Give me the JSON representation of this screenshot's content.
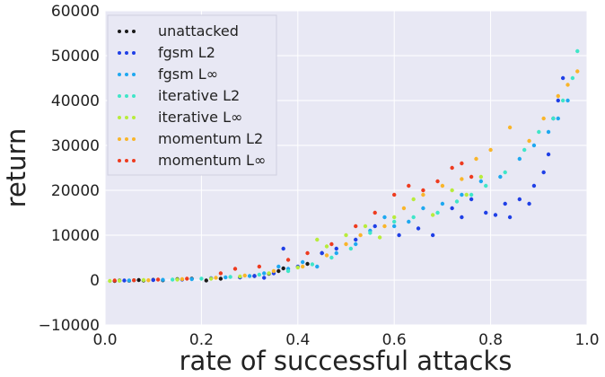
{
  "chart_data": {
    "type": "scatter",
    "title": "",
    "xlabel": "rate of successful attacks",
    "ylabel": "return",
    "xlim": [
      0.0,
      1.0
    ],
    "ylim": [
      -10000,
      60000
    ],
    "xticks": [
      0.0,
      0.2,
      0.4,
      0.6,
      0.8,
      1.0
    ],
    "xtick_labels": [
      "0.0",
      "0.2",
      "0.4",
      "0.6",
      "0.8",
      "1.0"
    ],
    "yticks": [
      -10000,
      0,
      10000,
      20000,
      30000,
      40000,
      50000,
      60000
    ],
    "ytick_labels": [
      "−10000",
      "0",
      "10000",
      "20000",
      "30000",
      "40000",
      "50000",
      "60000"
    ],
    "grid": true,
    "background": "#e8e8f4",
    "legend_position": "top-left",
    "series": [
      {
        "name": "unattacked",
        "color": "#1a1a1a",
        "points": [
          [
            0.02,
            -200
          ],
          [
            0.03,
            -100
          ],
          [
            0.05,
            -150
          ],
          [
            0.07,
            0
          ],
          [
            0.08,
            -100
          ],
          [
            0.1,
            50
          ],
          [
            0.12,
            -50
          ],
          [
            0.15,
            200
          ],
          [
            0.18,
            300
          ],
          [
            0.21,
            -100
          ],
          [
            0.24,
            300
          ],
          [
            0.28,
            600
          ],
          [
            0.31,
            900
          ],
          [
            0.34,
            1400
          ],
          [
            0.36,
            2000
          ],
          [
            0.37,
            2600
          ],
          [
            0.42,
            3600
          ],
          [
            0.45,
            6000
          ]
        ]
      },
      {
        "name": "fgsm L2",
        "color": "#1f3fe6",
        "points": [
          [
            0.04,
            -100
          ],
          [
            0.1,
            0
          ],
          [
            0.16,
            100
          ],
          [
            0.22,
            400
          ],
          [
            0.28,
            600
          ],
          [
            0.31,
            900
          ],
          [
            0.33,
            500
          ],
          [
            0.35,
            1500
          ],
          [
            0.37,
            7000
          ],
          [
            0.4,
            3000
          ],
          [
            0.45,
            6000
          ],
          [
            0.48,
            7000
          ],
          [
            0.52,
            9000
          ],
          [
            0.56,
            12000
          ],
          [
            0.61,
            10000
          ],
          [
            0.65,
            11500
          ],
          [
            0.68,
            10000
          ],
          [
            0.72,
            16000
          ],
          [
            0.74,
            14000
          ],
          [
            0.76,
            18000
          ],
          [
            0.79,
            15000
          ],
          [
            0.81,
            14500
          ],
          [
            0.83,
            17000
          ],
          [
            0.84,
            14000
          ],
          [
            0.86,
            18000
          ],
          [
            0.88,
            17000
          ],
          [
            0.89,
            21000
          ],
          [
            0.91,
            24000
          ],
          [
            0.92,
            28000
          ],
          [
            0.93,
            36000
          ],
          [
            0.94,
            40000
          ],
          [
            0.95,
            45000
          ]
        ]
      },
      {
        "name": "fgsm L∞",
        "color": "#1ea8f0",
        "points": [
          [
            0.05,
            -100
          ],
          [
            0.12,
            50
          ],
          [
            0.18,
            200
          ],
          [
            0.25,
            600
          ],
          [
            0.3,
            900
          ],
          [
            0.33,
            1500
          ],
          [
            0.36,
            3000
          ],
          [
            0.38,
            2500
          ],
          [
            0.41,
            4000
          ],
          [
            0.44,
            3000
          ],
          [
            0.48,
            6000
          ],
          [
            0.52,
            8000
          ],
          [
            0.55,
            11000
          ],
          [
            0.58,
            14000
          ],
          [
            0.6,
            12000
          ],
          [
            0.63,
            13000
          ],
          [
            0.66,
            16000
          ],
          [
            0.7,
            17000
          ],
          [
            0.74,
            19000
          ],
          [
            0.78,
            22000
          ],
          [
            0.82,
            23000
          ],
          [
            0.86,
            27000
          ],
          [
            0.89,
            30000
          ],
          [
            0.92,
            33000
          ],
          [
            0.94,
            36000
          ],
          [
            0.96,
            40000
          ]
        ]
      },
      {
        "name": "iterative L2",
        "color": "#3fe6c8",
        "points": [
          [
            0.06,
            -50
          ],
          [
            0.14,
            100
          ],
          [
            0.2,
            300
          ],
          [
            0.26,
            700
          ],
          [
            0.32,
            1200
          ],
          [
            0.38,
            2000
          ],
          [
            0.43,
            3500
          ],
          [
            0.47,
            5000
          ],
          [
            0.51,
            7000
          ],
          [
            0.55,
            10500
          ],
          [
            0.6,
            13000
          ],
          [
            0.64,
            14000
          ],
          [
            0.69,
            15000
          ],
          [
            0.73,
            17500
          ],
          [
            0.76,
            19000
          ],
          [
            0.79,
            21000
          ],
          [
            0.83,
            24000
          ],
          [
            0.87,
            29000
          ],
          [
            0.9,
            33000
          ],
          [
            0.93,
            36000
          ],
          [
            0.95,
            40000
          ],
          [
            0.97,
            45000
          ],
          [
            0.98,
            51000
          ]
        ]
      },
      {
        "name": "iterative L∞",
        "color": "#b8ec3c",
        "points": [
          [
            0.01,
            -200
          ],
          [
            0.03,
            -150
          ],
          [
            0.08,
            0
          ],
          [
            0.15,
            100
          ],
          [
            0.22,
            300
          ],
          [
            0.28,
            800
          ],
          [
            0.34,
            1500
          ],
          [
            0.4,
            2800
          ],
          [
            0.44,
            9000
          ],
          [
            0.46,
            7500
          ],
          [
            0.5,
            10000
          ],
          [
            0.54,
            12000
          ],
          [
            0.57,
            9500
          ],
          [
            0.6,
            14000
          ],
          [
            0.64,
            18000
          ],
          [
            0.68,
            14500
          ],
          [
            0.72,
            20000
          ],
          [
            0.75,
            19000
          ],
          [
            0.78,
            23000
          ]
        ]
      },
      {
        "name": "momentum L2",
        "color": "#f9b52a",
        "points": [
          [
            0.09,
            -50
          ],
          [
            0.16,
            200
          ],
          [
            0.23,
            500
          ],
          [
            0.29,
            1000
          ],
          [
            0.35,
            2000
          ],
          [
            0.41,
            3000
          ],
          [
            0.46,
            5500
          ],
          [
            0.5,
            8000
          ],
          [
            0.53,
            10000
          ],
          [
            0.58,
            12000
          ],
          [
            0.62,
            16000
          ],
          [
            0.66,
            19000
          ],
          [
            0.7,
            21000
          ],
          [
            0.74,
            22500
          ],
          [
            0.77,
            27000
          ],
          [
            0.8,
            29000
          ],
          [
            0.84,
            34000
          ],
          [
            0.88,
            31000
          ],
          [
            0.91,
            36000
          ],
          [
            0.94,
            41000
          ],
          [
            0.96,
            43500
          ],
          [
            0.98,
            46500
          ]
        ]
      },
      {
        "name": "momentum L∞",
        "color": "#ee3b1f",
        "points": [
          [
            0.02,
            -100
          ],
          [
            0.06,
            -50
          ],
          [
            0.11,
            100
          ],
          [
            0.17,
            300
          ],
          [
            0.24,
            1500
          ],
          [
            0.27,
            2500
          ],
          [
            0.32,
            3000
          ],
          [
            0.38,
            4500
          ],
          [
            0.42,
            6000
          ],
          [
            0.47,
            8000
          ],
          [
            0.52,
            12000
          ],
          [
            0.56,
            15000
          ],
          [
            0.6,
            19000
          ],
          [
            0.63,
            21000
          ],
          [
            0.66,
            20000
          ],
          [
            0.69,
            22000
          ],
          [
            0.72,
            25000
          ],
          [
            0.74,
            26000
          ],
          [
            0.76,
            23000
          ]
        ]
      }
    ]
  }
}
